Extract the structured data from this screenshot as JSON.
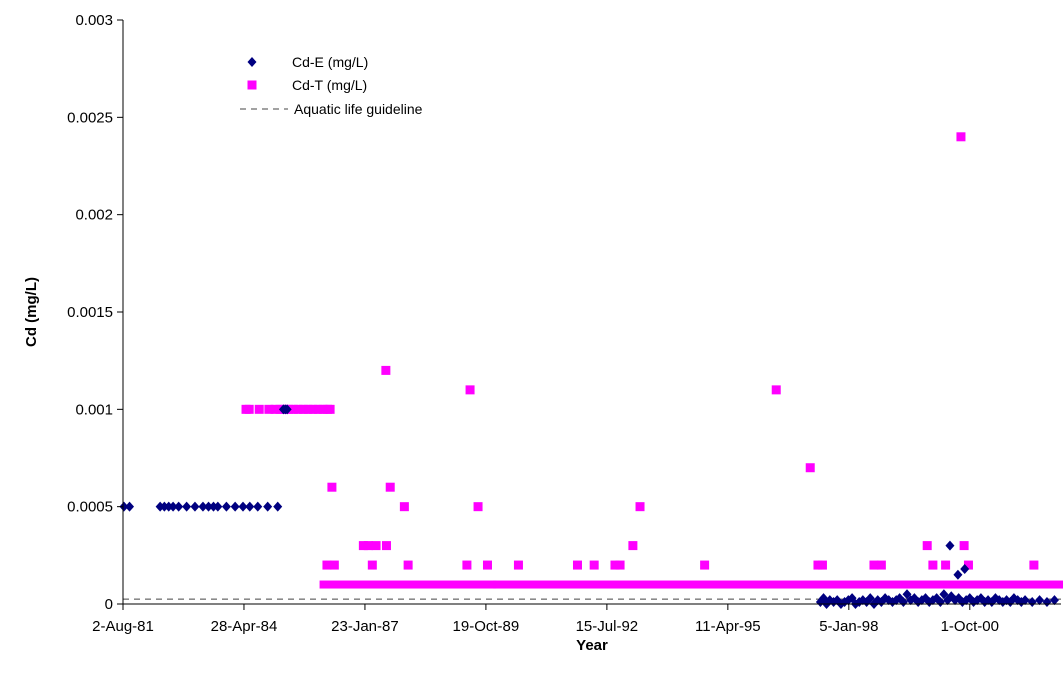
{
  "chart_data": {
    "type": "scatter",
    "title": "",
    "xlabel": "Year",
    "ylabel": "Cd (mg/L)",
    "x_axis": {
      "type": "date",
      "min": "1981-08-02",
      "max": "2002-10-25",
      "ticks": [
        {
          "date": "1981-08-02",
          "label": "2-Aug-81"
        },
        {
          "date": "1984-04-28",
          "label": "28-Apr-84"
        },
        {
          "date": "1987-01-23",
          "label": "23-Jan-87"
        },
        {
          "date": "1989-10-19",
          "label": "19-Oct-89"
        },
        {
          "date": "1992-07-15",
          "label": "15-Jul-92"
        },
        {
          "date": "1995-04-11",
          "label": "11-Apr-95"
        },
        {
          "date": "1998-01-05",
          "label": "5-Jan-98"
        },
        {
          "date": "2000-10-01",
          "label": "1-Oct-00"
        }
      ]
    },
    "y_axis": {
      "min": 0,
      "max": 0.003,
      "ticks": [
        {
          "value": 0,
          "label": "0"
        },
        {
          "value": 0.0005,
          "label": "0.0005"
        },
        {
          "value": 0.001,
          "label": "0.001"
        },
        {
          "value": 0.0015,
          "label": "0.0015"
        },
        {
          "value": 0.002,
          "label": "0.002"
        },
        {
          "value": 0.0025,
          "label": "0.0025"
        },
        {
          "value": 0.003,
          "label": "0.003"
        }
      ]
    },
    "grid": false,
    "legend": {
      "position": "top-left-inside"
    },
    "series": [
      {
        "name": "Cd-E (mg/L)",
        "marker": "diamond",
        "color": "#000080",
        "points": [
          [
            "1981-08-10",
            0.0005
          ],
          [
            "1981-09-25",
            0.0005
          ],
          [
            "1982-06-05",
            0.0005
          ],
          [
            "1982-07-10",
            0.0005
          ],
          [
            "1982-08-15",
            0.0005
          ],
          [
            "1982-09-20",
            0.0005
          ],
          [
            "1982-11-05",
            0.0005
          ],
          [
            "1983-01-10",
            0.0005
          ],
          [
            "1983-03-20",
            0.0005
          ],
          [
            "1983-05-25",
            0.0005
          ],
          [
            "1983-07-10",
            0.0005
          ],
          [
            "1983-08-20",
            0.0005
          ],
          [
            "1983-09-25",
            0.0005
          ],
          [
            "1983-12-05",
            0.0005
          ],
          [
            "1984-02-15",
            0.0005
          ],
          [
            "1984-04-20",
            0.0005
          ],
          [
            "1984-06-15",
            0.0005
          ],
          [
            "1984-08-20",
            0.0005
          ],
          [
            "1984-11-10",
            0.0005
          ],
          [
            "1985-02-01",
            0.0005
          ],
          [
            "1985-03-20",
            0.001
          ],
          [
            "1985-04-05",
            0.001
          ],
          [
            "1985-04-20",
            0.001
          ],
          [
            "1997-05-15",
            1e-05
          ],
          [
            "1997-06-10",
            3e-05
          ],
          [
            "1997-07-05",
            0.0
          ],
          [
            "1997-08-01",
            2e-05
          ],
          [
            "1997-09-01",
            1e-05
          ],
          [
            "1997-10-01",
            2e-05
          ],
          [
            "1997-11-01",
            0.0
          ],
          [
            "1997-12-01",
            1e-05
          ],
          [
            "1998-01-01",
            2e-05
          ],
          [
            "1998-02-01",
            3e-05
          ],
          [
            "1998-03-01",
            0.0
          ],
          [
            "1998-04-01",
            1e-05
          ],
          [
            "1998-05-01",
            2e-05
          ],
          [
            "1998-06-01",
            1e-05
          ],
          [
            "1998-07-01",
            3e-05
          ],
          [
            "1998-08-01",
            0.0
          ],
          [
            "1998-09-01",
            2e-05
          ],
          [
            "1998-10-01",
            1e-05
          ],
          [
            "1998-11-01",
            3e-05
          ],
          [
            "1998-12-01",
            2e-05
          ],
          [
            "1999-01-01",
            1e-05
          ],
          [
            "1999-02-01",
            2e-05
          ],
          [
            "1999-03-01",
            3e-05
          ],
          [
            "1999-04-01",
            1e-05
          ],
          [
            "1999-05-01",
            5e-05
          ],
          [
            "1999-06-01",
            2e-05
          ],
          [
            "1999-07-01",
            3e-05
          ],
          [
            "1999-08-01",
            1e-05
          ],
          [
            "1999-09-01",
            2e-05
          ],
          [
            "1999-10-01",
            3e-05
          ],
          [
            "1999-11-01",
            1e-05
          ],
          [
            "1999-12-01",
            2e-05
          ],
          [
            "2000-01-01",
            3e-05
          ],
          [
            "2000-02-01",
            1e-05
          ],
          [
            "2000-03-01",
            5e-05
          ],
          [
            "2000-04-01",
            2e-05
          ],
          [
            "2000-04-20",
            0.0003
          ],
          [
            "2000-05-01",
            4e-05
          ],
          [
            "2000-06-01",
            2e-05
          ],
          [
            "2000-06-25",
            0.00015
          ],
          [
            "2000-07-01",
            3e-05
          ],
          [
            "2000-08-01",
            1e-05
          ],
          [
            "2000-08-20",
            0.00018
          ],
          [
            "2000-09-01",
            2e-05
          ],
          [
            "2000-10-01",
            3e-05
          ],
          [
            "2000-11-01",
            1e-05
          ],
          [
            "2000-12-01",
            2e-05
          ],
          [
            "2001-01-01",
            3e-05
          ],
          [
            "2001-02-01",
            1e-05
          ],
          [
            "2001-03-01",
            2e-05
          ],
          [
            "2001-04-01",
            1e-05
          ],
          [
            "2001-05-01",
            3e-05
          ],
          [
            "2001-06-01",
            2e-05
          ],
          [
            "2001-07-01",
            1e-05
          ],
          [
            "2001-08-01",
            2e-05
          ],
          [
            "2001-09-01",
            1e-05
          ],
          [
            "2001-10-01",
            3e-05
          ],
          [
            "2001-11-01",
            2e-05
          ],
          [
            "2001-12-01",
            1e-05
          ],
          [
            "2002-01-01",
            2e-05
          ],
          [
            "2002-03-01",
            1e-05
          ],
          [
            "2002-05-01",
            2e-05
          ],
          [
            "2002-07-01",
            1e-05
          ],
          [
            "2002-09-01",
            2e-05
          ]
        ]
      },
      {
        "name": "Cd-T (mg/L)",
        "marker": "square",
        "color": "#ff00ff",
        "points": [
          [
            "1984-05-15",
            0.001
          ],
          [
            "1984-06-10",
            0.001
          ],
          [
            "1984-09-01",
            0.001
          ],
          [
            "1984-11-20",
            0.001
          ],
          [
            "1985-01-10",
            0.001
          ],
          [
            "1985-02-20",
            0.001
          ],
          [
            "1985-03-25",
            0.001
          ],
          [
            "1985-05-01",
            0.001
          ],
          [
            "1985-06-10",
            0.001
          ],
          [
            "1985-07-20",
            0.001
          ],
          [
            "1985-09-01",
            0.001
          ],
          [
            "1985-10-10",
            0.001
          ],
          [
            "1985-11-20",
            0.001
          ],
          [
            "1986-01-01",
            0.001
          ],
          [
            "1986-02-10",
            0.001
          ],
          [
            "1986-03-20",
            0.001
          ],
          [
            "1986-04-10",
            0.001
          ],
          [
            "1986-04-25",
            0.0006
          ],
          [
            "1986-03-15",
            0.0002
          ],
          [
            "1986-05-15",
            0.0002
          ],
          [
            "1987-01-10",
            0.0003
          ],
          [
            "1987-02-20",
            0.0003
          ],
          [
            "1987-03-25",
            0.0002
          ],
          [
            "1987-04-25",
            0.0003
          ],
          [
            "1987-07-15",
            0.0012
          ],
          [
            "1987-07-20",
            0.0003
          ],
          [
            "1987-08-20",
            0.0006
          ],
          [
            "1987-12-15",
            0.0005
          ],
          [
            "1988-01-15",
            0.0002
          ],
          [
            "1989-05-15",
            0.0002
          ],
          [
            "1989-06-10",
            0.0011
          ],
          [
            "1989-08-15",
            0.0005
          ],
          [
            "1989-11-01",
            0.0002
          ],
          [
            "1990-07-15",
            0.0002
          ],
          [
            "1991-11-15",
            0.0002
          ],
          [
            "1992-04-01",
            0.0002
          ],
          [
            "1992-09-20",
            0.0002
          ],
          [
            "1992-11-01",
            0.0002
          ],
          [
            "1993-02-15",
            0.0003
          ],
          [
            "1993-04-15",
            0.0005
          ],
          [
            "1994-10-01",
            0.0002
          ],
          [
            "1996-05-15",
            0.0011
          ],
          [
            "1997-02-20",
            0.0007
          ],
          [
            "1997-04-25",
            0.0002
          ],
          [
            "1997-06-01",
            0.0002
          ],
          [
            "1998-08-01",
            0.0002
          ],
          [
            "1998-10-01",
            0.0002
          ],
          [
            "1999-10-15",
            0.0003
          ],
          [
            "1999-12-01",
            0.0002
          ],
          [
            "2000-03-15",
            0.0002
          ],
          [
            "2000-07-20",
            0.0024
          ],
          [
            "2000-08-15",
            0.0003
          ],
          [
            "2000-09-20",
            0.0002
          ],
          [
            "2002-03-15",
            0.0002
          ]
        ],
        "dense_bands": [
          {
            "from": "1986-02-15",
            "to": "1989-12-10",
            "value": 0.0001
          },
          {
            "from": "1990-01-20",
            "to": "2002-10-25",
            "value": 0.0001
          }
        ]
      },
      {
        "name": "Aquatic life guideline",
        "type": "line",
        "style": "dashed",
        "color": "#444444",
        "value": 2.5e-05
      }
    ]
  }
}
